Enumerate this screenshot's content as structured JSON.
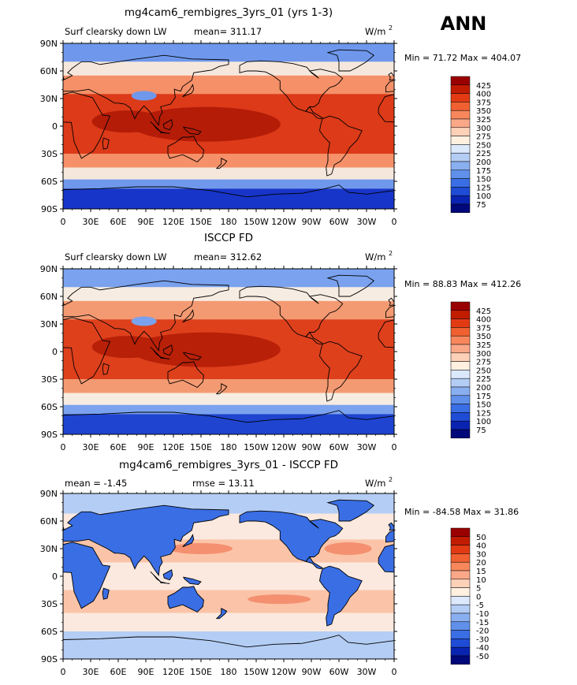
{
  "season": "ANN",
  "panels": [
    {
      "title": "mg4cam6_rembigres_3yrs_01 (yrs 1-3)",
      "left_label": "Surf clearsky down LW",
      "center_label": "mean= 311.17",
      "units": "W/m",
      "units_exp": "2",
      "minmax": "Min =  71.72 Max = 404.07",
      "colorbar_labels": [
        "425",
        "400",
        "375",
        "350",
        "325",
        "300",
        "275",
        "250",
        "225",
        "200",
        "175",
        "150",
        "125",
        "100",
        "75"
      ],
      "colorbar_colors": [
        "#9a0000",
        "#c21c00",
        "#e23b14",
        "#f06030",
        "#f8875c",
        "#fba888",
        "#fdd0b8",
        "#fff0e0",
        "#dce8fb",
        "#b4cdf5",
        "#8aaff0",
        "#6090ea",
        "#3a6ee4",
        "#1f4cd4",
        "#0a24b2",
        "#00087a"
      ],
      "fill_cold": "#1735c8",
      "fill_cool": "#6f98ec",
      "fill_mild": "#f5e7dc",
      "fill_warm": "#f59068",
      "fill_hot": "#dc3a18",
      "fill_peak": "#b41c08"
    },
    {
      "title": "ISCCP FD",
      "left_label": "Surf clearsky down LW",
      "center_label": "mean= 312.62",
      "units": "W/m",
      "units_exp": "2",
      "minmax": "Min =  88.83 Max = 412.26",
      "colorbar_labels": [
        "425",
        "400",
        "375",
        "350",
        "325",
        "300",
        "275",
        "250",
        "225",
        "200",
        "175",
        "150",
        "125",
        "100",
        "75"
      ],
      "colorbar_colors": [
        "#9a0000",
        "#c21c00",
        "#e23b14",
        "#f06030",
        "#f8875c",
        "#fba888",
        "#fdd0b8",
        "#fff0e0",
        "#dce8fb",
        "#b4cdf5",
        "#8aaff0",
        "#6090ea",
        "#3a6ee4",
        "#1f4cd4",
        "#0a24b2",
        "#00087a"
      ],
      "fill_cold": "#1e44d0",
      "fill_cool": "#7aa2ee",
      "fill_mild": "#f7ece2",
      "fill_warm": "#f49a72",
      "fill_hot": "#de401c",
      "fill_peak": "#b82008"
    },
    {
      "title": "mg4cam6_rembigres_3yrs_01 - ISCCP FD",
      "left_label": "mean =   -1.45",
      "center_label": "rmse =   13.11",
      "units": "W/m",
      "units_exp": "2",
      "minmax": "Min = -84.58 Max =  31.86",
      "colorbar_labels": [
        "50",
        "40",
        "30",
        "20",
        "15",
        "10",
        "5",
        "0",
        "-5",
        "-10",
        "-15",
        "-20",
        "-30",
        "-40",
        "-50"
      ],
      "colorbar_colors": [
        "#9a0000",
        "#c21c00",
        "#e23b14",
        "#f06030",
        "#f8875c",
        "#fba888",
        "#fdd0b8",
        "#fff0e0",
        "#dce8fb",
        "#b4cdf5",
        "#8aaff0",
        "#6090ea",
        "#3a6ee4",
        "#1f4cd4",
        "#0a24b2",
        "#00087a"
      ],
      "fill_cold": "#3a6ee4",
      "fill_cool": "#b4cdf5",
      "fill_mild": "#fbe9df",
      "fill_warm": "#fbc4a8",
      "fill_hot": "#f49070",
      "fill_peak": "#e8724c"
    }
  ],
  "lat_ticks": [
    "90N",
    "60N",
    "30N",
    "0",
    "30S",
    "60S",
    "90S"
  ],
  "lon_ticks": [
    "0",
    "30E",
    "60E",
    "90E",
    "120E",
    "150E",
    "180",
    "150W",
    "120W",
    "90W",
    "60W",
    "30W",
    "0"
  ]
}
